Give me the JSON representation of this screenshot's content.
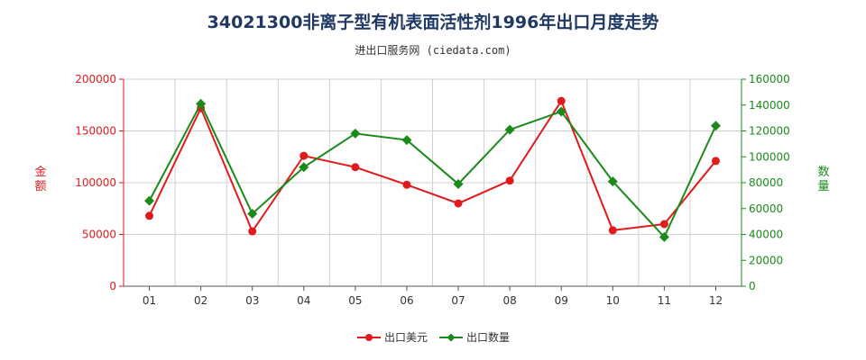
{
  "title": "34021300非离子型有机表面活性剂1996年出口月度走势",
  "subtitle": "进出口服务网 (ciedata.com)",
  "colors": {
    "value": "#e31a1c",
    "quantity": "#1a8a1a",
    "left_axis": "#e31a1c",
    "right_axis": "#1a8a1a"
  },
  "chart_data": {
    "type": "line",
    "categories": [
      "01",
      "02",
      "03",
      "04",
      "05",
      "06",
      "07",
      "08",
      "09",
      "10",
      "11",
      "12"
    ],
    "y_left": {
      "label": "金额",
      "ylim": [
        0,
        200000
      ],
      "ticks": [
        "0",
        "50000",
        "100000",
        "150000",
        "200000"
      ],
      "tick_values": [
        0,
        50000,
        100000,
        150000,
        200000
      ]
    },
    "y_right": {
      "label": "数量",
      "ylim": [
        0,
        160000
      ],
      "ticks": [
        "0",
        "20000",
        "40000",
        "60000",
        "80000",
        "100000",
        "120000",
        "140000",
        "160000"
      ],
      "tick_values": [
        0,
        20000,
        40000,
        60000,
        80000,
        100000,
        120000,
        140000,
        160000
      ]
    },
    "grid": true,
    "legend_position": "bottom",
    "series": [
      {
        "name": "出口美元",
        "axis": "left",
        "marker": "circle",
        "values": [
          68000,
          172000,
          53000,
          126000,
          115000,
          98000,
          80000,
          102000,
          179000,
          54000,
          60000,
          121000
        ]
      },
      {
        "name": "出口数量",
        "axis": "right",
        "marker": "diamond",
        "values": [
          66000,
          141000,
          56000,
          92000,
          118000,
          113000,
          79000,
          121000,
          135000,
          81000,
          38000,
          124000
        ]
      }
    ]
  }
}
